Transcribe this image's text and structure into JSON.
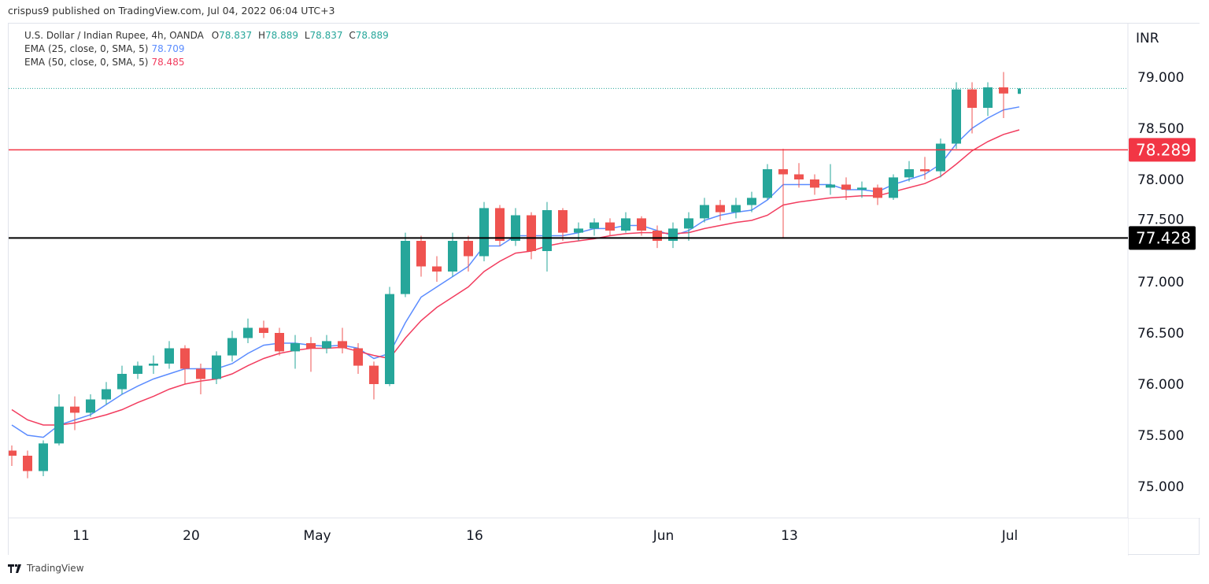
{
  "published": "crispus9 published on TradingView.com, Jul 04, 2022 06:04 UTC+3",
  "legend": {
    "symbol": "U.S. Dollar / Indian Rupee, 4h, OANDA",
    "o_label": "O",
    "o": "78.837",
    "h_label": "H",
    "h": "78.889",
    "l_label": "L",
    "l": "78.837",
    "c_label": "C",
    "c": "78.889",
    "ema25_label": "EMA (25, close, 0, SMA, 5)",
    "ema25": "78.709",
    "ema50_label": "EMA (50, close, 0, SMA, 5)",
    "ema50": "78.485"
  },
  "footer": {
    "brand": "TradingView",
    "logo_icon": "tradingview-logo-icon"
  },
  "colors": {
    "up": "#26a69a",
    "down": "#ef5350",
    "ema25": "#5b8cff",
    "ema50": "#f23d5f",
    "resistance": "#f23645",
    "support": "#000000",
    "last_price": "#26a69a"
  },
  "chart_data": {
    "type": "candlestick",
    "currency_label": "INR",
    "ylim": [
      74.6,
      79.5
    ],
    "y_ticks": [
      "75.000",
      "75.500",
      "76.000",
      "76.500",
      "77.000",
      "77.500",
      "78.000",
      "78.500",
      "79.000"
    ],
    "x_ticks": [
      {
        "date": "2022-04-11",
        "label": "11"
      },
      {
        "date": "2022-04-20",
        "label": "20"
      },
      {
        "date": "2022-05-02",
        "label": "May"
      },
      {
        "date": "2022-05-16",
        "label": "16"
      },
      {
        "date": "2022-06-01",
        "label": "Jun"
      },
      {
        "date": "2022-06-13",
        "label": "13"
      },
      {
        "date": "2022-07-01",
        "label": "Jul"
      }
    ],
    "horizontal_lines": [
      {
        "value": 78.289,
        "label": "78.289",
        "style": "solid",
        "color": "#f23645"
      },
      {
        "value": 77.428,
        "label": "77.428",
        "style": "solid",
        "color": "#000000"
      }
    ],
    "last_price": 78.889,
    "candle_fields": [
      "date",
      "open",
      "high",
      "low",
      "close"
    ],
    "candles": [
      [
        "2022-04-05",
        75.35,
        75.4,
        75.2,
        75.3
      ],
      [
        "2022-04-06",
        75.3,
        75.35,
        75.08,
        75.15
      ],
      [
        "2022-04-07",
        75.15,
        75.45,
        75.1,
        75.42
      ],
      [
        "2022-04-08",
        75.42,
        75.9,
        75.4,
        75.78
      ],
      [
        "2022-04-11",
        75.78,
        75.88,
        75.55,
        75.72
      ],
      [
        "2022-04-12",
        75.72,
        75.9,
        75.68,
        75.85
      ],
      [
        "2022-04-13",
        75.85,
        76.02,
        75.8,
        75.95
      ],
      [
        "2022-04-14",
        75.95,
        76.18,
        75.9,
        76.1
      ],
      [
        "2022-04-15",
        76.1,
        76.22,
        76.05,
        76.18
      ],
      [
        "2022-04-18",
        76.18,
        76.28,
        76.1,
        76.2
      ],
      [
        "2022-04-19",
        76.2,
        76.42,
        76.15,
        76.35
      ],
      [
        "2022-04-20",
        76.35,
        76.38,
        76.0,
        76.15
      ],
      [
        "2022-04-21",
        76.15,
        76.2,
        75.9,
        76.05
      ],
      [
        "2022-04-22",
        76.05,
        76.32,
        76.0,
        76.28
      ],
      [
        "2022-04-25",
        76.28,
        76.52,
        76.22,
        76.45
      ],
      [
        "2022-04-26",
        76.45,
        76.64,
        76.4,
        76.55
      ],
      [
        "2022-04-27",
        76.55,
        76.62,
        76.45,
        76.5
      ],
      [
        "2022-04-28",
        76.5,
        76.55,
        76.28,
        76.32
      ],
      [
        "2022-04-29",
        76.32,
        76.48,
        76.15,
        76.4
      ],
      [
        "2022-05-02",
        76.4,
        76.46,
        76.12,
        76.35
      ],
      [
        "2022-05-03",
        76.35,
        76.48,
        76.3,
        76.42
      ],
      [
        "2022-05-04",
        76.42,
        76.55,
        76.3,
        76.35
      ],
      [
        "2022-05-05",
        76.35,
        76.4,
        76.1,
        76.18
      ],
      [
        "2022-05-06",
        76.18,
        76.22,
        75.85,
        76.0
      ],
      [
        "2022-05-09",
        76.0,
        76.95,
        75.98,
        76.88
      ],
      [
        "2022-05-10",
        76.88,
        77.48,
        76.85,
        77.4
      ],
      [
        "2022-05-11",
        77.4,
        77.45,
        77.05,
        77.15
      ],
      [
        "2022-05-12",
        77.15,
        77.25,
        77.0,
        77.1
      ],
      [
        "2022-05-13",
        77.1,
        77.48,
        77.05,
        77.4
      ],
      [
        "2022-05-16",
        77.4,
        77.45,
        77.1,
        77.25
      ],
      [
        "2022-05-17",
        77.25,
        77.78,
        77.2,
        77.72
      ],
      [
        "2022-05-18",
        77.72,
        77.75,
        77.35,
        77.4
      ],
      [
        "2022-05-19",
        77.4,
        77.72,
        77.35,
        77.65
      ],
      [
        "2022-05-20",
        77.65,
        77.68,
        77.22,
        77.3
      ],
      [
        "2022-05-23",
        77.3,
        77.78,
        77.1,
        77.7
      ],
      [
        "2022-05-24",
        77.7,
        77.72,
        77.4,
        77.48
      ],
      [
        "2022-05-25",
        77.48,
        77.58,
        77.4,
        77.52
      ],
      [
        "2022-05-26",
        77.52,
        77.62,
        77.45,
        77.58
      ],
      [
        "2022-05-27",
        77.58,
        77.62,
        77.45,
        77.5
      ],
      [
        "2022-05-30",
        77.5,
        77.68,
        77.48,
        77.62
      ],
      [
        "2022-05-31",
        77.62,
        77.64,
        77.45,
        77.5
      ],
      [
        "2022-06-01",
        77.5,
        77.55,
        77.33,
        77.4
      ],
      [
        "2022-06-02",
        77.4,
        77.58,
        77.33,
        77.52
      ],
      [
        "2022-06-03",
        77.52,
        77.68,
        77.4,
        77.62
      ],
      [
        "2022-06-06",
        77.62,
        77.82,
        77.58,
        77.75
      ],
      [
        "2022-06-07",
        77.75,
        77.8,
        77.6,
        77.68
      ],
      [
        "2022-06-08",
        77.68,
        77.82,
        77.62,
        77.75
      ],
      [
        "2022-06-09",
        77.75,
        77.88,
        77.68,
        77.82
      ],
      [
        "2022-06-10",
        77.82,
        78.15,
        77.8,
        78.1
      ],
      [
        "2022-06-13",
        78.1,
        78.3,
        77.43,
        78.05
      ],
      [
        "2022-06-14",
        78.05,
        78.16,
        77.92,
        78.0
      ],
      [
        "2022-06-15",
        78.0,
        78.05,
        77.85,
        77.92
      ],
      [
        "2022-06-16",
        77.92,
        78.15,
        77.85,
        77.95
      ],
      [
        "2022-06-17",
        77.95,
        78.02,
        77.8,
        77.9
      ],
      [
        "2022-06-20",
        77.9,
        77.98,
        77.82,
        77.92
      ],
      [
        "2022-06-21",
        77.92,
        77.95,
        77.75,
        77.82
      ],
      [
        "2022-06-22",
        77.82,
        78.05,
        77.8,
        78.02
      ],
      [
        "2022-06-23",
        78.02,
        78.18,
        77.98,
        78.1
      ],
      [
        "2022-06-24",
        78.1,
        78.22,
        78.0,
        78.08
      ],
      [
        "2022-06-27",
        78.08,
        78.4,
        78.02,
        78.35
      ],
      [
        "2022-06-28",
        78.35,
        78.95,
        78.3,
        78.88
      ],
      [
        "2022-06-29",
        78.88,
        78.95,
        78.45,
        78.7
      ],
      [
        "2022-06-30",
        78.7,
        78.95,
        78.62,
        78.9
      ],
      [
        "2022-07-01",
        78.9,
        79.05,
        78.6,
        78.84
      ],
      [
        "2022-07-04",
        78.837,
        78.889,
        78.837,
        78.889
      ]
    ],
    "series": [
      {
        "name": "EMA (25, close, 0, SMA, 5)",
        "color": "#5b8cff",
        "values": [
          75.6,
          75.5,
          75.48,
          75.6,
          75.65,
          75.7,
          75.8,
          75.9,
          75.98,
          76.05,
          76.1,
          76.15,
          76.15,
          76.15,
          76.2,
          76.3,
          76.38,
          76.4,
          76.4,
          76.38,
          76.37,
          76.38,
          76.35,
          76.25,
          76.3,
          76.6,
          76.85,
          76.95,
          77.05,
          77.15,
          77.35,
          77.35,
          77.45,
          77.45,
          77.45,
          77.45,
          77.48,
          77.52,
          77.52,
          77.55,
          77.55,
          77.5,
          77.45,
          77.5,
          77.6,
          77.65,
          77.68,
          77.7,
          77.8,
          77.95,
          77.95,
          77.95,
          77.95,
          77.9,
          77.9,
          77.88,
          77.95,
          78.0,
          78.05,
          78.15,
          78.35,
          78.5,
          78.6,
          78.68,
          78.709
        ]
      },
      {
        "name": "EMA (50, close, 0, SMA, 5)",
        "color": "#f23d5f",
        "values": [
          75.75,
          75.65,
          75.6,
          75.6,
          75.62,
          75.66,
          75.7,
          75.75,
          75.82,
          75.88,
          75.95,
          76.0,
          76.03,
          76.05,
          76.1,
          76.18,
          76.25,
          76.3,
          76.33,
          76.35,
          76.35,
          76.36,
          76.32,
          76.28,
          76.25,
          76.45,
          76.62,
          76.75,
          76.85,
          76.95,
          77.1,
          77.2,
          77.28,
          77.3,
          77.35,
          77.38,
          77.4,
          77.42,
          77.45,
          77.47,
          77.48,
          77.48,
          77.47,
          77.48,
          77.52,
          77.55,
          77.58,
          77.6,
          77.65,
          77.75,
          77.78,
          77.8,
          77.82,
          77.83,
          77.84,
          77.84,
          77.88,
          77.92,
          77.96,
          78.03,
          78.15,
          78.28,
          78.37,
          78.44,
          78.485
        ]
      }
    ]
  }
}
